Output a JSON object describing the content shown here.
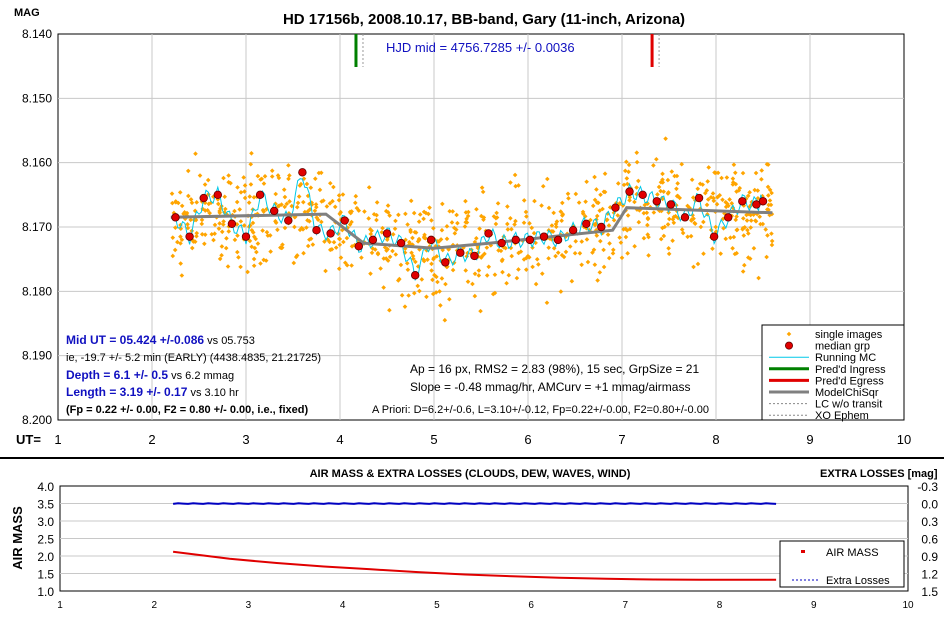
{
  "chart_data": [
    {
      "type": "scatter",
      "title": "HD 17156b, 2008.10.17, BB-band, Gary (11-inch, Arizona)",
      "ylabel": "MAG",
      "xlabel": "UT=",
      "xlim": [
        1,
        10
      ],
      "ylim": [
        8.14,
        8.2
      ],
      "y_inverted": true,
      "x_ticks": [
        "1",
        "2",
        "3",
        "4",
        "5",
        "6",
        "7",
        "8",
        "9",
        "10"
      ],
      "y_ticks": [
        "8.140",
        "8.150",
        "8.160",
        "8.170",
        "8.180",
        "8.190",
        "8.200"
      ],
      "hjd_label": "HJD mid = 4756.7285 +/- 0.0036",
      "ingress_ut": 4.17,
      "egress_ut": 7.32,
      "single_images_range": {
        "x_start": 2.2,
        "x_end": 8.6
      },
      "series": [
        {
          "name": "median grp",
          "x": [
            2.25,
            2.4,
            2.55,
            2.7,
            2.85,
            3.0,
            3.15,
            3.3,
            3.45,
            3.6,
            3.75,
            3.9,
            4.05,
            4.2,
            4.35,
            4.5,
            4.65,
            4.8,
            4.97,
            5.12,
            5.28,
            5.43,
            5.58,
            5.72,
            5.87,
            6.02,
            6.17,
            6.32,
            6.48,
            6.62,
            6.78,
            6.93,
            7.08,
            7.22,
            7.37,
            7.52,
            7.67,
            7.82,
            7.98,
            8.13,
            8.28,
            8.43,
            8.5
          ],
          "y": [
            8.1685,
            8.1715,
            8.1655,
            8.165,
            8.1695,
            8.1715,
            8.165,
            8.1675,
            8.169,
            8.1615,
            8.1705,
            8.171,
            8.169,
            8.173,
            8.172,
            8.171,
            8.1725,
            8.1775,
            8.172,
            8.1755,
            8.174,
            8.1745,
            8.171,
            8.1725,
            8.172,
            8.172,
            8.1715,
            8.172,
            8.1705,
            8.1695,
            8.17,
            8.167,
            8.1645,
            8.165,
            8.166,
            8.1665,
            8.1685,
            8.1655,
            8.1715,
            8.1685,
            8.166,
            8.1665,
            8.166
          ]
        },
        {
          "name": "ModelChiSqr",
          "x": [
            2.2,
            3.85,
            4.25,
            5.0,
            5.6,
            6.9,
            7.05,
            8.6
          ],
          "y": [
            8.1685,
            8.168,
            8.1725,
            8.1733,
            8.1725,
            8.1705,
            8.167,
            8.1678
          ]
        }
      ],
      "legend": [
        "single images",
        "median grp",
        "Running MC",
        "Pred'd Ingress",
        "Pred'd Egress",
        "ModelChiSqr",
        "LC w/o transit",
        "XO Ephem"
      ],
      "legend_position": "bottom-right",
      "annotations": {
        "mid_ut_label": "Mid UT = ",
        "mid_ut_value": "05.424",
        "mid_ut_err": " +/-",
        "mid_ut_err_value": "0.086",
        "mid_ut_vs": " vs 05.753",
        "ie_line": "ie, -19.7 +/- 5.2 min (EARLY) (4438.4835, 21.21725)",
        "depth_label": "Depth = ",
        "depth_value": "6.1",
        "depth_err": " +/- ",
        "depth_err_value": "0.5",
        "depth_vs": " vs 6.2 mmag",
        "length_label": "Length = ",
        "length_value": "3.19",
        "length_err": " +/- ",
        "length_err_value": "0.17",
        "length_vs": " vs 3.10 hr",
        "fp_line": "(Fp = 0.22 +/- 0.00, F2 = 0.80 +/- 0.00, i.e., fixed)",
        "ap_line": "Ap = 16 px, RMS2 = 2.83 (98%), 15 sec, GrpSize = 21",
        "slope_line": "Slope = -0.48 mmag/hr, AMCurv = +1 mmag/airmass",
        "apriori_line": "A Priori: D=6.2+/-0.6, L=3.10+/-0.12, Fp=0.22+/-0.00, F2=0.80+/-0.00"
      }
    },
    {
      "type": "line",
      "title": "AIR MASS & EXTRA LOSSES (CLOUDS, DEW, WAVES, WIND)",
      "ylabel": "AIR MASS",
      "y2label": "EXTRA LOSSES [mag]",
      "xlim": [
        1,
        10
      ],
      "ylim": [
        1.0,
        4.0
      ],
      "y2lim": [
        -0.3,
        1.5
      ],
      "x_ticks": [
        "1",
        "2",
        "3",
        "4",
        "5",
        "6",
        "7",
        "8",
        "9",
        "10"
      ],
      "y_ticks": [
        "4.0",
        "3.5",
        "3.0",
        "2.5",
        "2.0",
        "1.5",
        "1.0"
      ],
      "y2_ticks": [
        "-0.3",
        "0.0",
        "0.3",
        "0.6",
        "0.9",
        "1.2",
        "1.5"
      ],
      "series": [
        {
          "name": "AIR MASS",
          "x": [
            2.2,
            2.8,
            3.3,
            3.8,
            4.3,
            4.8,
            5.3,
            5.8,
            6.3,
            6.8,
            7.3,
            7.8,
            8.3,
            8.6
          ],
          "y": [
            2.12,
            1.92,
            1.8,
            1.7,
            1.62,
            1.54,
            1.47,
            1.42,
            1.38,
            1.35,
            1.33,
            1.32,
            1.32,
            1.32
          ]
        },
        {
          "name": "Extra Losses",
          "x": [
            2.2,
            8.6
          ],
          "y": [
            0.0,
            0.0
          ]
        }
      ],
      "legend_position": "right"
    }
  ],
  "colors": {
    "single": "#FFA500",
    "median": "#E00000",
    "running": "#00C8E8",
    "ingress": "#008000",
    "egress": "#E00000",
    "model": "#808080",
    "airmass": "#E00000",
    "extra": "#0000C0",
    "hjd": "#1010C0",
    "blue_label": "#1010C0"
  }
}
